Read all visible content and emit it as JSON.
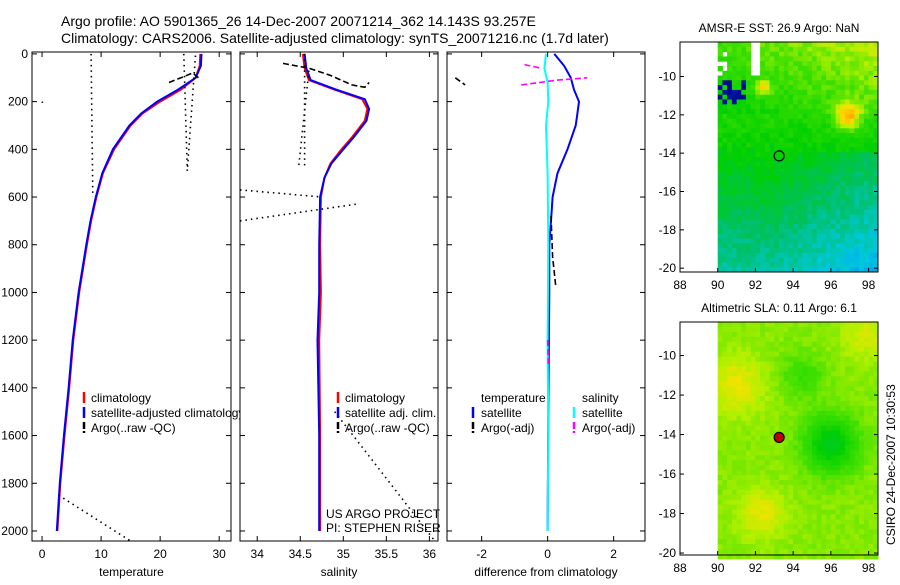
{
  "header": {
    "line1": "Argo profile: AO 5901365_26 14-Dec-2007 20071214_362 14.143S 93.257E",
    "line2": "Climatology: CARS2006. Satellite-adjusted climatology: synTS_20071216.nc (1.7d later)"
  },
  "side_text": "CSIRO 24-Dec-2007 10:30:53",
  "colors": {
    "climatology": "#ff0000",
    "satellite": "#0000ff",
    "argo": "#000000",
    "sal_satellite": "#00ffff",
    "sal_argo": "#ff00ff"
  },
  "chart_data": [
    {
      "type": "line",
      "id": "temperature",
      "xlabel": "temperature",
      "ylabel": "",
      "xlim": [
        -1.7,
        32
      ],
      "ylim": [
        2042,
        -8
      ],
      "xticks": [
        0,
        10,
        20,
        30
      ],
      "yticks": [
        0,
        200,
        400,
        600,
        800,
        1000,
        1200,
        1400,
        1600,
        1800,
        2000
      ],
      "legend": [
        {
          "label": "climatology",
          "color": "#ff0000",
          "style": "solid"
        },
        {
          "label": "satellite-adjusted climatology",
          "color": "#0000ff",
          "style": "solid"
        },
        {
          "label": "Argo(..raw -QC)",
          "color": "#000000",
          "style": "dashed"
        }
      ],
      "series": [
        {
          "name": "climatology",
          "color": "#ff0000",
          "style": "solid",
          "segments": [
            [
              [
                26.8,
                0
              ],
              [
                26.7,
                50
              ],
              [
                26,
                100
              ],
              [
                23.5,
                150
              ],
              [
                20,
                200
              ],
              [
                17,
                250
              ],
              [
                15,
                300
              ],
              [
                12.2,
                400
              ],
              [
                10.3,
                500
              ],
              [
                9.2,
                600
              ],
              [
                8.3,
                700
              ],
              [
                7.6,
                800
              ],
              [
                6.3,
                1000
              ],
              [
                5.3,
                1200
              ],
              [
                4.6,
                1400
              ],
              [
                3.8,
                1600
              ],
              [
                3.1,
                1800
              ],
              [
                2.6,
                2000
              ]
            ]
          ]
        },
        {
          "name": "satellite-adjusted climatology",
          "color": "#0000ff",
          "style": "solid",
          "segments": [
            [
              [
                27,
                0
              ],
              [
                26.9,
                50
              ],
              [
                26,
                100
              ],
              [
                23,
                150
              ],
              [
                19.5,
                200
              ],
              [
                16.8,
                250
              ],
              [
                14.8,
                300
              ],
              [
                12,
                400
              ],
              [
                10.2,
                500
              ],
              [
                9.1,
                600
              ],
              [
                8.2,
                700
              ],
              [
                7.5,
                800
              ],
              [
                6.2,
                1000
              ],
              [
                5.2,
                1200
              ],
              [
                4.5,
                1400
              ],
              [
                3.7,
                1600
              ],
              [
                3.0,
                1800
              ],
              [
                2.5,
                2000
              ]
            ]
          ]
        },
        {
          "name": "Argo(..raw -QC)",
          "color": "#000000",
          "style": "dotted",
          "segments": [
            [
              [
                8.3,
                0
              ],
              [
                8.6,
                600
              ]
            ],
            [
              [
                24,
                0
              ],
              [
                24.6,
                490
              ],
              [
                26,
                0
              ]
            ],
            [
              [
                2.8,
                1850
              ],
              [
                15.5,
                2050
              ]
            ],
            [
              [
                0,
                200
              ],
              [
                0.1,
                205
              ]
            ]
          ]
        },
        {
          "name": "Argo(..raw -QC) dashed",
          "color": "#000000",
          "style": "dashed",
          "segments": [
            [
              [
                21.5,
                120
              ],
              [
                24,
                95
              ],
              [
                25.5,
                80
              ],
              [
                26.5,
                100
              ]
            ]
          ]
        }
      ]
    },
    {
      "type": "line",
      "id": "salinity",
      "xlabel": "salinity",
      "xlim": [
        33.8,
        36.1
      ],
      "ylim": [
        2042,
        -8
      ],
      "xticks": [
        34,
        34.5,
        35,
        35.5,
        36
      ],
      "xtick_labels": [
        "34",
        "34.5",
        "35",
        "35.5",
        "36"
      ],
      "legend": [
        {
          "label": "climatology",
          "color": "#ff0000",
          "style": "solid"
        },
        {
          "label": "satellite adj. clim.",
          "color": "#0000ff",
          "style": "solid"
        },
        {
          "label": "Argo(..raw -QC)",
          "color": "#000000",
          "style": "dashed"
        }
      ],
      "annotations": [
        "US ARGO PROJECT",
        "PI: STEPHEN RISER"
      ],
      "series": [
        {
          "name": "climatology",
          "color": "#ff0000",
          "style": "solid",
          "segments": [
            [
              [
                34.53,
                0
              ],
              [
                34.55,
                60
              ],
              [
                34.6,
                110
              ],
              [
                34.9,
                150
              ],
              [
                35.22,
                190
              ],
              [
                35.28,
                230
              ],
              [
                35.25,
                280
              ],
              [
                35.1,
                350
              ],
              [
                34.98,
                400
              ],
              [
                34.85,
                460
              ],
              [
                34.78,
                520
              ],
              [
                34.74,
                600
              ],
              [
                34.73,
                800
              ],
              [
                34.74,
                1000
              ],
              [
                34.72,
                1200
              ],
              [
                34.73,
                1600
              ],
              [
                34.73,
                2000
              ]
            ]
          ]
        },
        {
          "name": "satellite adj. clim.",
          "color": "#0000ff",
          "style": "solid",
          "segments": [
            [
              [
                34.55,
                0
              ],
              [
                34.57,
                60
              ],
              [
                34.62,
                110
              ],
              [
                34.92,
                150
              ],
              [
                35.25,
                190
              ],
              [
                35.3,
                230
              ],
              [
                35.27,
                280
              ],
              [
                35.12,
                350
              ],
              [
                35.0,
                400
              ],
              [
                34.86,
                460
              ],
              [
                34.78,
                520
              ],
              [
                34.73,
                600
              ],
              [
                34.72,
                800
              ],
              [
                34.72,
                1000
              ],
              [
                34.7,
                1200
              ],
              [
                34.72,
                1600
              ],
              [
                34.72,
                2000
              ]
            ]
          ]
        },
        {
          "name": "Argo(..raw -QC) dashed",
          "color": "#000000",
          "style": "dashed",
          "segments": [
            [
              [
                34.3,
                40
              ],
              [
                34.6,
                60
              ],
              [
                34.85,
                90
              ],
              [
                35.1,
                130
              ],
              [
                35.25,
                140
              ],
              [
                35.3,
                120
              ]
            ]
          ]
        },
        {
          "name": "Argo(..raw -QC)",
          "color": "#000000",
          "style": "dotted",
          "segments": [
            [
              [
                34.55,
                0
              ],
              [
                34.55,
                470
              ]
            ],
            [
              [
                34.6,
                70
              ],
              [
                34.48,
                480
              ]
            ],
            [
              [
                33.8,
                570
              ],
              [
                34.75,
                600
              ]
            ],
            [
              [
                33.8,
                700
              ],
              [
                35.15,
                630
              ]
            ],
            [
              [
                34.9,
                1500
              ],
              [
                36.08,
                2050
              ]
            ]
          ]
        }
      ]
    },
    {
      "type": "line",
      "id": "difference",
      "xlabel": "difference from climatology",
      "xlim": [
        -3.05,
        2.95
      ],
      "ylim": [
        2042,
        -8
      ],
      "xticks": [
        -2,
        0,
        2
      ],
      "legend_temperature_title": "temperature",
      "legend_salinity_title": "salinity",
      "legend": [
        {
          "label": "satellite",
          "color": "#0000ff",
          "style": "solid",
          "group": "temperature"
        },
        {
          "label": "Argo(-adj)",
          "color": "#000000",
          "style": "dashed",
          "group": "temperature"
        },
        {
          "label": "satellite",
          "color": "#00ffff",
          "style": "solid",
          "group": "salinity"
        },
        {
          "label": "Argo(-adj)",
          "color": "#ff00ff",
          "style": "dashed",
          "group": "salinity"
        }
      ],
      "series": [
        {
          "name": "temperature satellite",
          "color": "#0000ff",
          "style": "solid",
          "segments": [
            [
              [
                0.2,
                0
              ],
              [
                0.5,
                50
              ],
              [
                0.7,
                100
              ],
              [
                0.8,
                150
              ],
              [
                0.95,
                200
              ],
              [
                0.9,
                250
              ],
              [
                0.85,
                300
              ],
              [
                0.6,
                400
              ],
              [
                0.3,
                500
              ],
              [
                0.15,
                600
              ],
              [
                0.1,
                700
              ],
              [
                0.05,
                800
              ],
              [
                0.05,
                1000
              ],
              [
                0.02,
                1500
              ],
              [
                0,
                2000
              ]
            ]
          ]
        },
        {
          "name": "salinity satellite",
          "color": "#00ffff",
          "style": "solid",
          "segments": [
            [
              [
                -0.05,
                0
              ],
              [
                -0.1,
                60
              ],
              [
                0,
                120
              ],
              [
                0.02,
                200
              ],
              [
                -0.05,
                300
              ],
              [
                0,
                500
              ],
              [
                0.02,
                800
              ],
              [
                0,
                1200
              ],
              [
                0.02,
                1600
              ],
              [
                0,
                2000
              ]
            ]
          ]
        },
        {
          "name": "temperature Argo(-adj)",
          "color": "#000000",
          "style": "dashed",
          "segments": [
            [
              [
                -2.8,
                100
              ],
              [
                -2.5,
                130
              ]
            ],
            [
              [
                0.1,
                680
              ],
              [
                0.15,
                850
              ],
              [
                0.25,
                980
              ]
            ]
          ]
        },
        {
          "name": "salinity Argo(-adj)",
          "color": "#ff00ff",
          "style": "dashed",
          "segments": [
            [
              [
                -0.7,
                45
              ],
              [
                -0.2,
                60
              ]
            ],
            [
              [
                -0.8,
                130
              ],
              [
                0.3,
                110
              ],
              [
                1.2,
                100
              ]
            ],
            [
              [
                0,
                1200
              ],
              [
                0.02,
                1300
              ]
            ]
          ]
        }
      ]
    }
  ],
  "maps": [
    {
      "id": "sst",
      "title": "AMSR-E SST: 26.9 Argo: NaN",
      "xlim": [
        88,
        98.5
      ],
      "ylim": [
        -20.2,
        -8.2
      ],
      "xticks": [
        88,
        90,
        92,
        94,
        96,
        98
      ],
      "yticks": [
        -10,
        -12,
        -14,
        -16,
        -18,
        -20
      ],
      "marker": {
        "lon": 93.257,
        "lat": -14.143,
        "filled": false
      }
    },
    {
      "id": "sla",
      "title": "Altimetric SLA: 0.11 Argo: 6.1",
      "xlim": [
        88,
        98.5
      ],
      "ylim": [
        -20.1,
        -8.3
      ],
      "xticks": [
        88,
        90,
        92,
        94,
        96,
        98
      ],
      "yticks": [
        -10,
        -12,
        -14,
        -16,
        -18,
        -20
      ],
      "marker": {
        "lon": 93.257,
        "lat": -14.143,
        "filled": true
      }
    }
  ]
}
